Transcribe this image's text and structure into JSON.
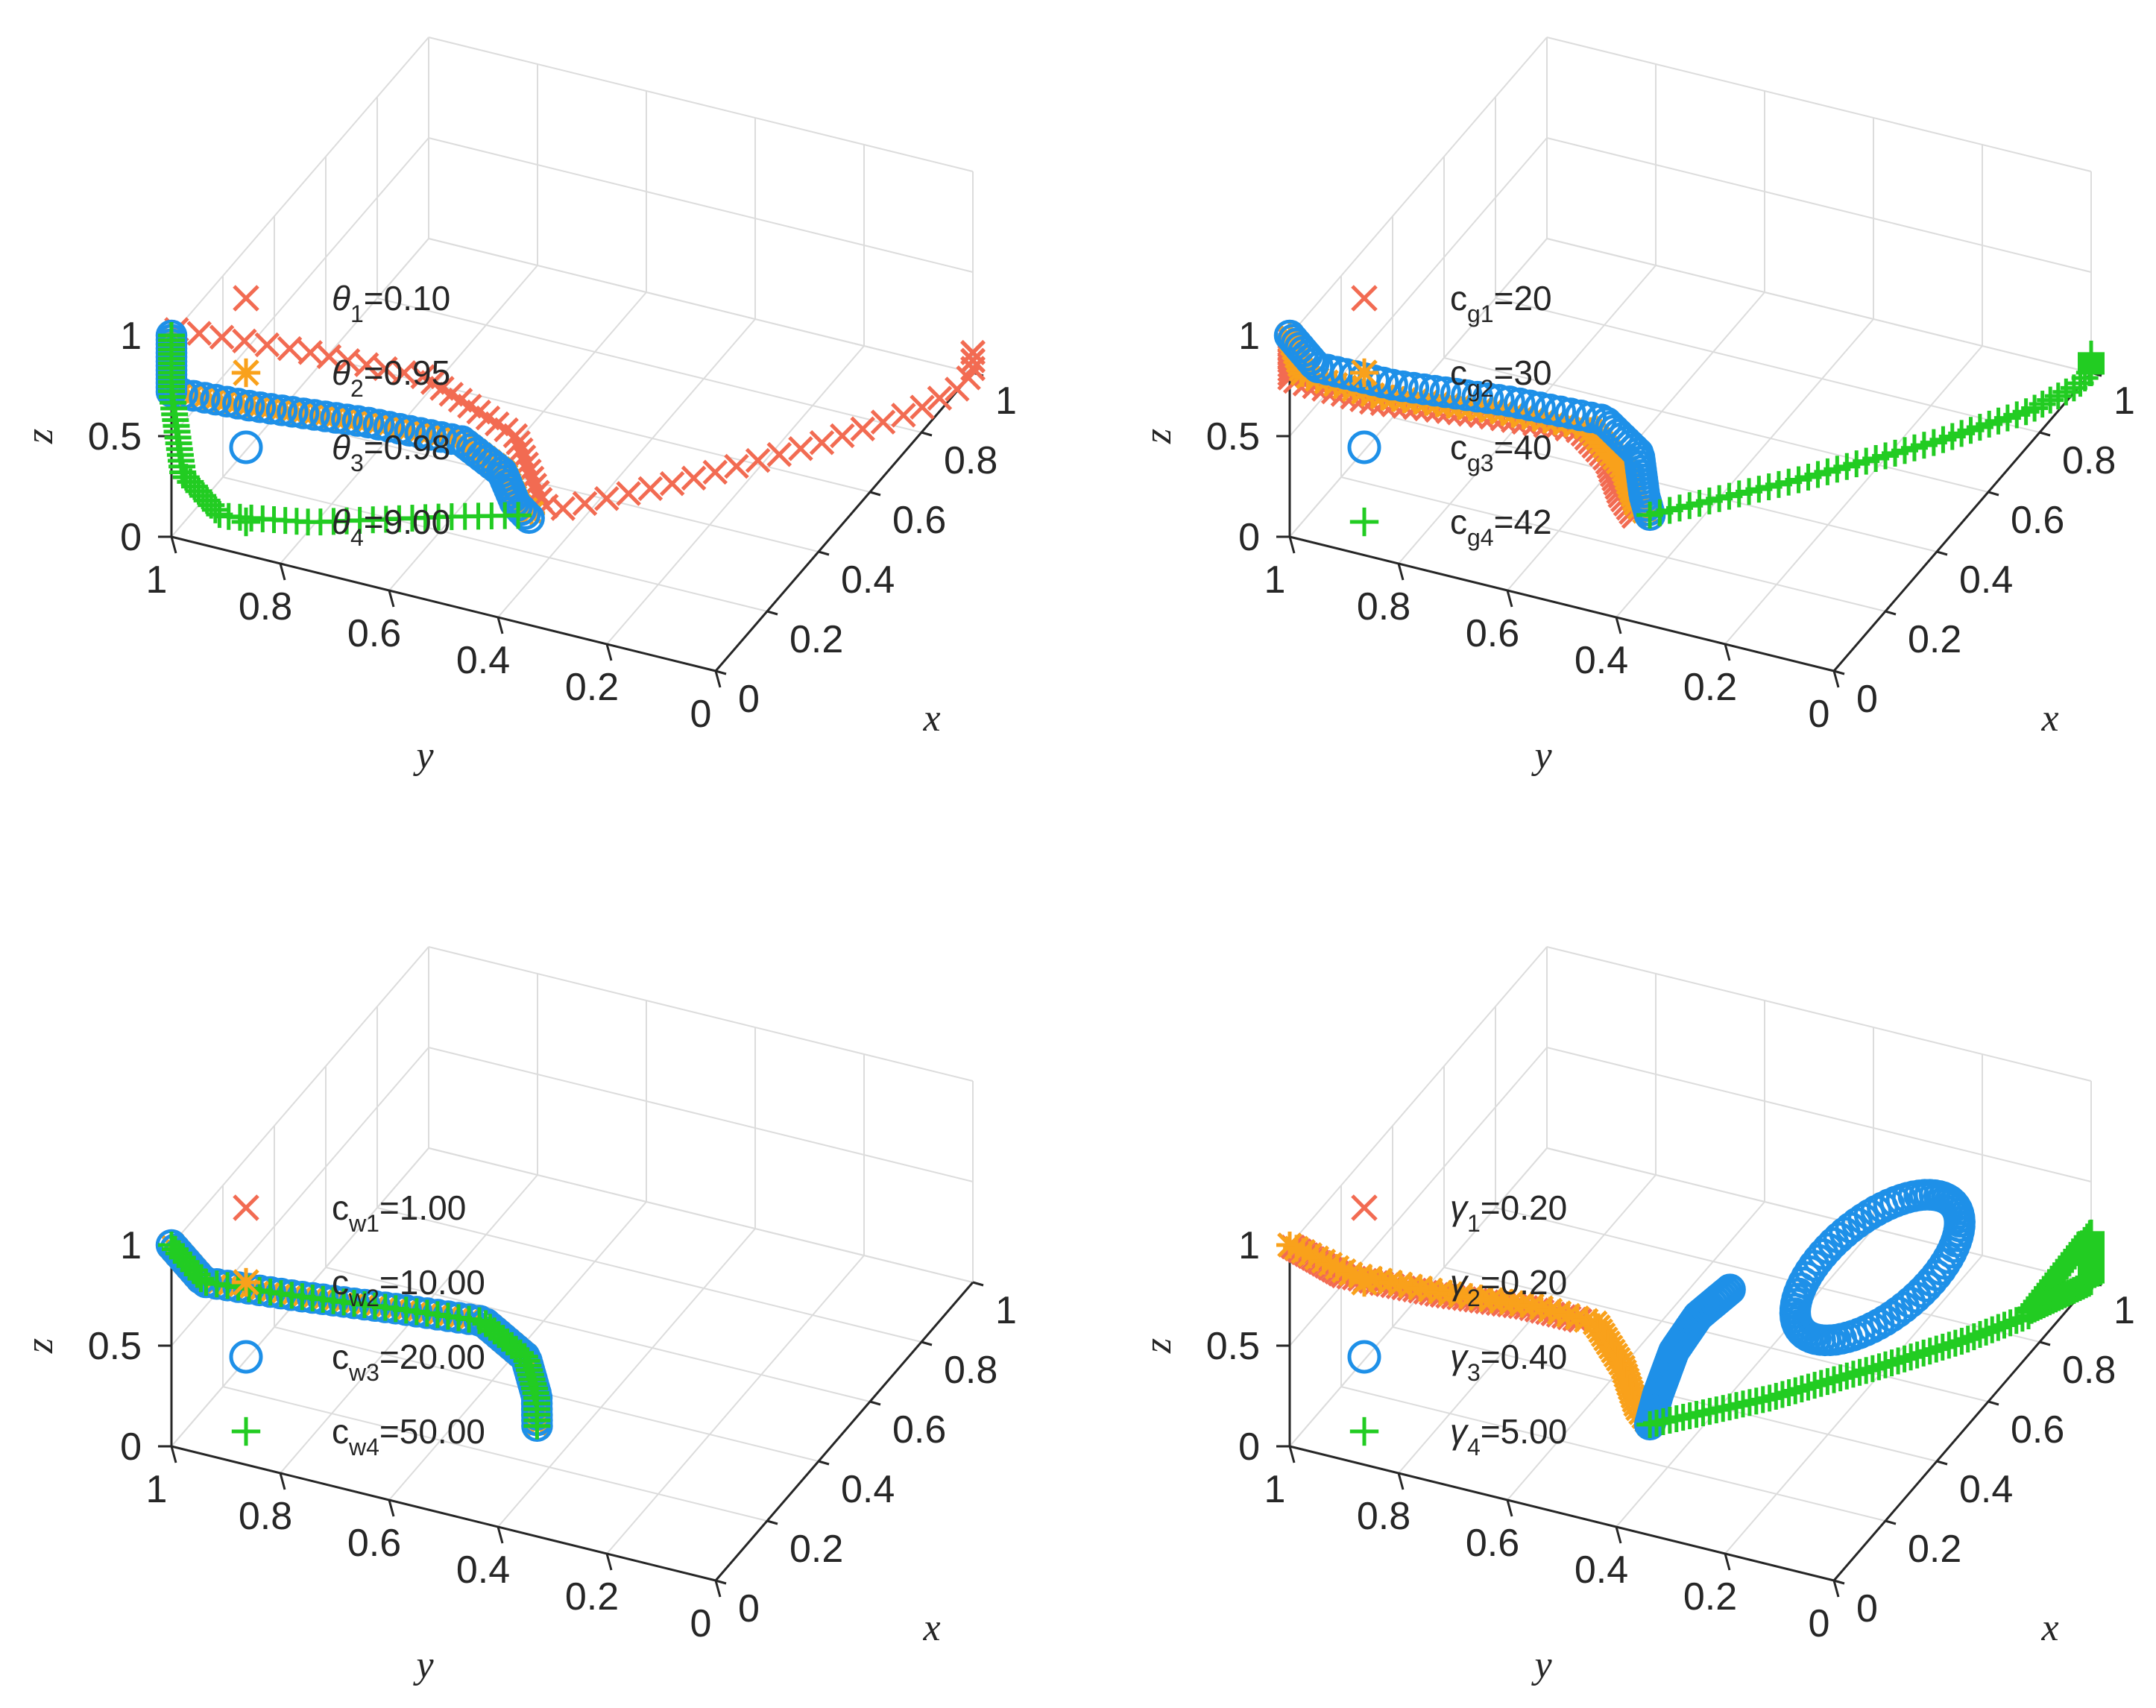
{
  "figure": {
    "colors": {
      "s1": "#F26B52",
      "s2": "#F9A11B",
      "s3": "#1E90E8",
      "s4": "#22CC22"
    },
    "markers": [
      "x-marker",
      "asterisk-marker",
      "circle-marker",
      "plus-marker"
    ]
  },
  "chart_data": [
    {
      "type": "scatter3d",
      "xlabel": "x",
      "ylabel": "y",
      "zlabel": "z",
      "xlim": [
        0,
        1
      ],
      "ylim": [
        0,
        1
      ],
      "zlim": [
        0,
        1
      ],
      "xticks": [
        "0",
        "0.2",
        "0.4",
        "0.6",
        "0.8",
        "1"
      ],
      "yticks": [
        "0",
        "0.2",
        "0.4",
        "0.6",
        "0.8",
        "1"
      ],
      "zticks": [
        "0",
        "0.5",
        "1"
      ],
      "grid": true,
      "legend_position": "left",
      "series": [
        {
          "name_sym": "θ",
          "name_sub": "1",
          "name_val": "=0.10",
          "marker": "x",
          "path": [
            [
              0.02,
              1,
              1
            ],
            [
              0.08,
              0.8,
              0.94
            ],
            [
              0.18,
              0.62,
              0.78
            ],
            [
              0.28,
              0.5,
              0.42
            ],
            [
              0.32,
              0.47,
              0.04
            ],
            [
              0.33,
              0.45,
              0.01
            ],
            [
              0.5,
              0.3,
              0
            ],
            [
              0.7,
              0.14,
              0
            ],
            [
              0.85,
              0.04,
              0
            ],
            [
              0.95,
              0,
              0
            ],
            [
              1,
              0,
              0
            ],
            [
              1,
              0,
              0.12
            ],
            [
              1,
              0,
              0.02
            ]
          ]
        },
        {
          "name_sym": "θ",
          "name_sub": "2",
          "name_val": "=0.95",
          "marker": "*",
          "path": [
            [
              0,
              1,
              1
            ],
            [
              0,
              1,
              0.72
            ],
            [
              0.06,
              0.88,
              0.64
            ],
            [
              0.16,
              0.72,
              0.52
            ],
            [
              0.24,
              0.58,
              0.4
            ],
            [
              0.28,
              0.52,
              0.22
            ],
            [
              0.29,
              0.5,
              0.06
            ],
            [
              0.3,
              0.48,
              0.02
            ]
          ]
        },
        {
          "name_sym": "θ",
          "name_sub": "3",
          "name_val": "=0.98",
          "marker": "o",
          "path": [
            [
              0,
              1,
              1
            ],
            [
              0,
              1,
              0.72
            ],
            [
              0.06,
              0.88,
              0.64
            ],
            [
              0.16,
              0.72,
              0.52
            ],
            [
              0.24,
              0.58,
              0.4
            ],
            [
              0.27,
              0.52,
              0.24
            ],
            [
              0.28,
              0.5,
              0.08
            ],
            [
              0.29,
              0.48,
              0.01
            ]
          ]
        },
        {
          "name_sym": "θ",
          "name_sub": "4",
          "name_val": "=9.00",
          "marker": "+",
          "path": [
            [
              0,
              1,
              1
            ],
            [
              0,
              1,
              0.72
            ],
            [
              -0.04,
              0.96,
              0.4
            ],
            [
              -0.02,
              0.9,
              0.2
            ],
            [
              0.08,
              0.78,
              0.1
            ],
            [
              0.22,
              0.6,
              0.04
            ],
            [
              0.29,
              0.5,
              0.01
            ]
          ]
        }
      ]
    },
    {
      "type": "scatter3d",
      "xlabel": "x",
      "ylabel": "y",
      "zlabel": "z",
      "xlim": [
        0,
        1
      ],
      "ylim": [
        0,
        1
      ],
      "zlim": [
        0,
        1
      ],
      "xticks": [
        "0",
        "0.2",
        "0.4",
        "0.6",
        "0.8",
        "1"
      ],
      "yticks": [
        "0",
        "0.2",
        "0.4",
        "0.6",
        "0.8",
        "1"
      ],
      "zticks": [
        "0",
        "0.5",
        "1"
      ],
      "grid": true,
      "legend_position": "left",
      "series": [
        {
          "name_sym": "c",
          "name_sub": "g1",
          "name_val": "=20",
          "marker": "x",
          "path": [
            [
              0,
              1,
              1
            ],
            [
              0,
              1,
              0.78
            ],
            [
              0.06,
              0.88,
              0.66
            ],
            [
              0.16,
              0.72,
              0.55
            ],
            [
              0.24,
              0.58,
              0.45
            ],
            [
              0.26,
              0.54,
              0.3
            ],
            [
              0.27,
              0.52,
              0.12
            ],
            [
              0.28,
              0.5,
              0.02
            ]
          ]
        },
        {
          "name_sym": "c",
          "name_sub": "g2",
          "name_val": "=30",
          "marker": "*",
          "path": [
            [
              0,
              1,
              1
            ],
            [
              0.01,
              0.98,
              0.8
            ],
            [
              0.07,
              0.87,
              0.68
            ],
            [
              0.17,
              0.71,
              0.57
            ],
            [
              0.25,
              0.57,
              0.46
            ],
            [
              0.28,
              0.52,
              0.25
            ],
            [
              0.29,
              0.5,
              0.06
            ],
            [
              0.3,
              0.48,
              0.01
            ]
          ]
        },
        {
          "name_sym": "c",
          "name_sub": "g3",
          "name_val": "=40",
          "marker": "o",
          "path": [
            [
              0,
              1,
              1
            ],
            [
              0.02,
              0.96,
              0.84
            ],
            [
              0.09,
              0.85,
              0.72
            ],
            [
              0.19,
              0.69,
              0.6
            ],
            [
              0.27,
              0.55,
              0.48
            ],
            [
              0.3,
              0.5,
              0.3
            ],
            [
              0.3,
              0.49,
              0.1
            ],
            [
              0.3,
              0.48,
              0.01
            ]
          ]
        },
        {
          "name_sym": "c",
          "name_sub": "g4",
          "name_val": "=42",
          "marker": "+",
          "path": [
            [
              0.3,
              0.48,
              0.01
            ],
            [
              0.5,
              0.3,
              0.01
            ],
            [
              0.7,
              0.14,
              0.01
            ],
            [
              0.85,
              0.04,
              0.01
            ],
            [
              0.95,
              0,
              0.01
            ],
            [
              1,
              0,
              0.01
            ],
            [
              1,
              0,
              0.1
            ],
            [
              1,
              0,
              0
            ]
          ]
        }
      ]
    },
    {
      "type": "scatter3d",
      "xlabel": "x",
      "ylabel": "y",
      "zlabel": "z",
      "xlim": [
        0,
        1
      ],
      "ylim": [
        0,
        1
      ],
      "zlim": [
        0,
        1
      ],
      "xticks": [
        "0",
        "0.2",
        "0.4",
        "0.6",
        "0.8",
        "1"
      ],
      "yticks": [
        "0",
        "0.2",
        "0.4",
        "0.6",
        "0.8",
        "1"
      ],
      "zticks": [
        "0",
        "0.5",
        "1"
      ],
      "grid": true,
      "legend_position": "left",
      "series": [
        {
          "name_sym": "c",
          "name_sub": "w1",
          "name_val": "=1.00",
          "marker": "x",
          "path": [
            [
              0,
              1,
              1
            ],
            [
              0.02,
              0.95,
              0.82
            ],
            [
              0.1,
              0.82,
              0.72
            ],
            [
              0.2,
              0.68,
              0.6
            ],
            [
              0.28,
              0.56,
              0.5
            ],
            [
              0.32,
              0.5,
              0.3
            ],
            [
              0.32,
              0.48,
              0.12
            ],
            [
              0.3,
              0.47,
              0.01
            ]
          ]
        },
        {
          "name_sym": "c",
          "name_sub": "w2",
          "name_val": "=10.00",
          "marker": "*",
          "path": [
            [
              0,
              1,
              1
            ],
            [
              0.02,
              0.95,
              0.82
            ],
            [
              0.1,
              0.82,
              0.72
            ],
            [
              0.2,
              0.68,
              0.6
            ],
            [
              0.28,
              0.56,
              0.5
            ],
            [
              0.32,
              0.5,
              0.3
            ],
            [
              0.32,
              0.48,
              0.12
            ],
            [
              0.3,
              0.47,
              0.01
            ]
          ]
        },
        {
          "name_sym": "c",
          "name_sub": "w3",
          "name_val": "=20.00",
          "marker": "o",
          "path": [
            [
              0,
              1,
              1
            ],
            [
              0.02,
              0.95,
              0.82
            ],
            [
              0.1,
              0.82,
              0.72
            ],
            [
              0.2,
              0.68,
              0.6
            ],
            [
              0.28,
              0.56,
              0.5
            ],
            [
              0.32,
              0.5,
              0.3
            ],
            [
              0.32,
              0.48,
              0.12
            ],
            [
              0.3,
              0.47,
              0.01
            ]
          ]
        },
        {
          "name_sym": "c",
          "name_sub": "w4",
          "name_val": "=50.00",
          "marker": "+",
          "path": [
            [
              0,
              1,
              1
            ],
            [
              0.02,
              0.95,
              0.82
            ],
            [
              0.1,
              0.82,
              0.72
            ],
            [
              0.2,
              0.68,
              0.6
            ],
            [
              0.28,
              0.56,
              0.5
            ],
            [
              0.32,
              0.5,
              0.3
            ],
            [
              0.32,
              0.48,
              0.12
            ],
            [
              0.3,
              0.47,
              0.01
            ]
          ]
        }
      ]
    },
    {
      "type": "scatter3d",
      "xlabel": "x",
      "ylabel": "y",
      "zlabel": "z",
      "xlim": [
        0,
        1
      ],
      "ylim": [
        0,
        1
      ],
      "zlim": [
        0,
        1
      ],
      "xticks": [
        "0",
        "0.2",
        "0.4",
        "0.6",
        "0.8",
        "1"
      ],
      "yticks": [
        "0",
        "0.2",
        "0.4",
        "0.6",
        "0.8",
        "1"
      ],
      "zticks": [
        "0",
        "0.5",
        "1"
      ],
      "grid": true,
      "legend_position": "left",
      "series": [
        {
          "name_sym": "γ",
          "name_sub": "1",
          "name_val": "=0.20",
          "marker": "x",
          "path": [
            [
              0,
              1,
              1
            ],
            [
              0.04,
              0.92,
              0.84
            ],
            [
              0.12,
              0.78,
              0.72
            ],
            [
              0.2,
              0.66,
              0.62
            ],
            [
              0.24,
              0.58,
              0.55
            ]
          ]
        },
        {
          "name_sym": "γ",
          "name_sub": "2",
          "name_val": "=0.20",
          "marker": "*",
          "path": [
            [
              0,
              1,
              1
            ],
            [
              0.05,
              0.91,
              0.84
            ],
            [
              0.13,
              0.77,
              0.72
            ],
            [
              0.21,
              0.65,
              0.62
            ],
            [
              0.26,
              0.56,
              0.52
            ],
            [
              0.28,
              0.52,
              0.3
            ],
            [
              0.29,
              0.5,
              0.1
            ],
            [
              0.3,
              0.48,
              0.01
            ]
          ]
        },
        {
          "name_sym": "γ",
          "name_sub": "3",
          "name_val": "=0.40",
          "marker": "o",
          "path": [
            [
              0.3,
              0.48,
              0.01
            ],
            [
              0.31,
              0.47,
              0.15
            ],
            [
              0.33,
              0.45,
              0.35
            ],
            [
              0.36,
              0.42,
              0.5
            ],
            [
              0.4,
              0.38,
              0.6
            ]
          ],
          "loop": {
            "center": [
              0.55,
              0.18,
              0.62
            ],
            "rx": 0.24,
            "ry": 0.1
          }
        },
        {
          "name_sym": "γ",
          "name_sub": "4",
          "name_val": "=5.00",
          "marker": "+",
          "path": [
            [
              0.3,
              0.48,
              0.01
            ],
            [
              0.45,
              0.33,
              0.02
            ],
            [
              0.6,
              0.2,
              0.04
            ],
            [
              0.72,
              0.1,
              0.06
            ],
            [
              0.82,
              0.03,
              0.08
            ]
          ],
          "triangle": [
            [
              0.82,
              0.03,
              0.1
            ],
            [
              1,
              0,
              0.25
            ],
            [
              1,
              0,
              0
            ]
          ]
        }
      ]
    }
  ]
}
